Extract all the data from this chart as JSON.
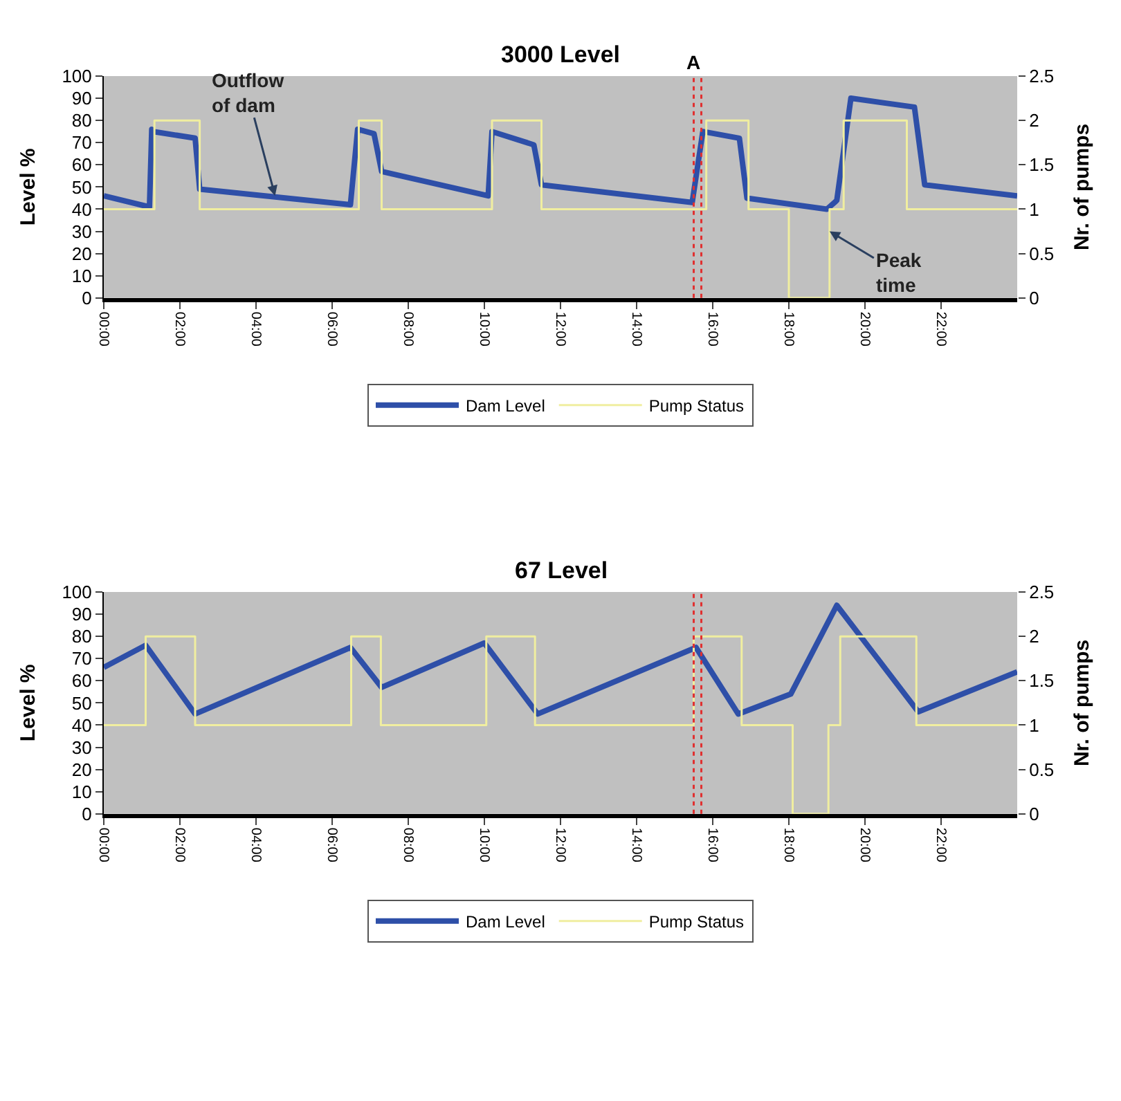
{
  "chart_data": [
    {
      "type": "line",
      "title": "3000 Level",
      "ylabel": "Level %",
      "y2label": "Nr. of pumps",
      "xlim": [
        0,
        24
      ],
      "xticks": [
        {
          "value": 0,
          "label": "00:00"
        },
        {
          "value": 2,
          "label": "02:00"
        },
        {
          "value": 4,
          "label": "04:00"
        },
        {
          "value": 6,
          "label": "06:00"
        },
        {
          "value": 8,
          "label": "08:00"
        },
        {
          "value": 10,
          "label": "10:00"
        },
        {
          "value": 12,
          "label": "12:00"
        },
        {
          "value": 14,
          "label": "14:00"
        },
        {
          "value": 16,
          "label": "16:00"
        },
        {
          "value": 18,
          "label": "18:00"
        },
        {
          "value": 20,
          "label": "20:00"
        },
        {
          "value": 22,
          "label": "22:00"
        }
      ],
      "ylim": [
        0,
        100
      ],
      "yticks": [
        0,
        10,
        20,
        30,
        40,
        50,
        60,
        70,
        80,
        90,
        100
      ],
      "y2lim": [
        0,
        2.5
      ],
      "y2ticks": [
        0,
        0.5,
        1,
        1.5,
        2,
        2.5
      ],
      "series": [
        {
          "name": "Dam Level",
          "color": "#2e4fa8",
          "x": [
            0,
            1.2,
            1.26,
            1.3,
            2.4,
            2.52,
            6.48,
            6.67,
            7.1,
            7.3,
            10.1,
            10.2,
            11.3,
            11.5,
            15.46,
            15.74,
            16.7,
            16.9,
            19.0,
            19.2,
            19.26,
            19.63,
            21.3,
            21.57,
            24
          ],
          "values": [
            46,
            41,
            76,
            75,
            72,
            49,
            42,
            76,
            74,
            57,
            46,
            75,
            69,
            51,
            43,
            75,
            72,
            45,
            40,
            43,
            44,
            90,
            86,
            51,
            46
          ]
        },
        {
          "name": "Pump Status",
          "type": "step",
          "axis": "y2",
          "color": "#f0eea0",
          "x": [
            0,
            1.33,
            2.52,
            6.7,
            7.3,
            10.2,
            11.5,
            15.83,
            16.94,
            18.0,
            19.07,
            19.44,
            21.1,
            24
          ],
          "values": [
            1,
            2,
            1,
            2,
            1,
            2,
            1,
            2,
            1,
            0,
            1,
            2,
            1,
            1
          ]
        }
      ],
      "ref_lines": [
        {
          "axis": "x",
          "value": 15.5,
          "label": "A",
          "color": "#e03030",
          "line_style": "dotted"
        },
        {
          "axis": "x",
          "value": 15.7,
          "color": "#e03030",
          "line_style": "dotted"
        }
      ],
      "annotations": [
        {
          "text": "Outflow of dam",
          "x": 4.5,
          "y": 46
        },
        {
          "text": "Peak time",
          "x": 19.07,
          "y": 30
        }
      ],
      "legend": "bottom",
      "grid": false
    },
    {
      "type": "line",
      "title": "67 Level",
      "ylabel": "Level %",
      "y2label": "Nr. of pumps",
      "xlim": [
        0,
        24
      ],
      "xticks": [
        {
          "value": 0,
          "label": "00:00"
        },
        {
          "value": 2,
          "label": "02:00"
        },
        {
          "value": 4,
          "label": "04:00"
        },
        {
          "value": 6,
          "label": "06:00"
        },
        {
          "value": 8,
          "label": "08:00"
        },
        {
          "value": 10,
          "label": "10:00"
        },
        {
          "value": 12,
          "label": "12:00"
        },
        {
          "value": 14,
          "label": "14:00"
        },
        {
          "value": 16,
          "label": "16:00"
        },
        {
          "value": 18,
          "label": "18:00"
        },
        {
          "value": 20,
          "label": "20:00"
        },
        {
          "value": 22,
          "label": "22:00"
        }
      ],
      "ylim": [
        0,
        100
      ],
      "yticks": [
        0,
        10,
        20,
        30,
        40,
        50,
        60,
        70,
        80,
        90,
        100
      ],
      "y2lim": [
        0,
        2.5
      ],
      "y2ticks": [
        0,
        0.5,
        1,
        1.5,
        2,
        2.5
      ],
      "series": [
        {
          "name": "Dam Level",
          "color": "#2e4fa8",
          "x": [
            0,
            1.1,
            2.4,
            6.48,
            7.3,
            10.0,
            11.4,
            15.56,
            16.67,
            18.05,
            19.26,
            21.4,
            24
          ],
          "values": [
            66,
            76,
            45,
            75,
            57,
            77,
            45,
            75,
            45,
            54,
            94,
            46,
            64
          ]
        },
        {
          "name": "Pump Status",
          "type": "step",
          "axis": "y2",
          "color": "#f0eea0",
          "x": [
            0,
            1.1,
            2.4,
            6.5,
            7.28,
            10.05,
            11.33,
            15.5,
            16.76,
            18.1,
            19.04,
            19.35,
            21.35,
            24
          ],
          "values": [
            1,
            2,
            1,
            2,
            1,
            2,
            1,
            2,
            1,
            0,
            1,
            2,
            1,
            1
          ]
        }
      ],
      "ref_lines": [
        {
          "axis": "x",
          "value": 15.5,
          "color": "#e03030",
          "line_style": "dotted"
        },
        {
          "axis": "x",
          "value": 15.7,
          "color": "#e03030",
          "line_style": "dotted"
        }
      ],
      "legend": "bottom",
      "grid": false
    }
  ]
}
